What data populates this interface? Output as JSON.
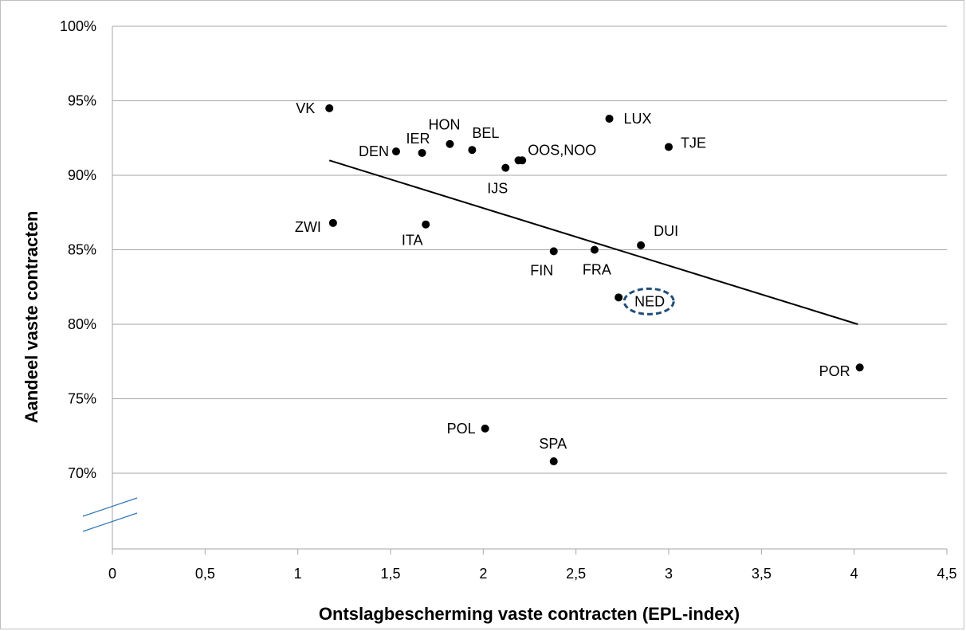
{
  "chart_data": {
    "type": "scatter",
    "title": "",
    "xlabel": "Ontslagbescherming vaste contracten (EPL-index)",
    "ylabel": "Aandeel vaste contracten",
    "xlim": [
      0,
      4.5
    ],
    "ylim": [
      65,
      100
    ],
    "x_ticks": [
      0,
      0.5,
      1,
      1.5,
      2,
      2.5,
      3,
      3.5,
      4,
      4.5
    ],
    "x_tick_labels": [
      "0",
      "0,5",
      "1",
      "1,5",
      "2",
      "2,5",
      "3",
      "3,5",
      "4",
      "4,5"
    ],
    "y_ticks": [
      70,
      75,
      80,
      85,
      90,
      95,
      100
    ],
    "y_tick_labels": [
      "70%",
      "75%",
      "80%",
      "85%",
      "90%",
      "95%",
      "100%"
    ],
    "grid": "horizontal",
    "axis_break": "y-axis break below 70%",
    "points": [
      {
        "label": "VK",
        "x": 1.17,
        "y": 94.5
      },
      {
        "label": "DEN",
        "x": 1.53,
        "y": 91.6
      },
      {
        "label": "IER",
        "x": 1.67,
        "y": 91.5
      },
      {
        "label": "HON",
        "x": 1.82,
        "y": 92.1
      },
      {
        "label": "BEL",
        "x": 1.94,
        "y": 91.7
      },
      {
        "label": "IJS",
        "x": 2.12,
        "y": 90.5
      },
      {
        "label": "",
        "x": 2.19,
        "y": 91.0
      },
      {
        "label": "OOS,NOO",
        "x": 2.21,
        "y": 91.0
      },
      {
        "label": "LUX",
        "x": 2.68,
        "y": 93.8
      },
      {
        "label": "TJE",
        "x": 3.0,
        "y": 91.9
      },
      {
        "label": "ZWI",
        "x": 1.19,
        "y": 86.8
      },
      {
        "label": "ITA",
        "x": 1.69,
        "y": 86.7
      },
      {
        "label": "FIN",
        "x": 2.38,
        "y": 84.9
      },
      {
        "label": "FRA",
        "x": 2.6,
        "y": 85.0
      },
      {
        "label": "DUI",
        "x": 2.85,
        "y": 85.3
      },
      {
        "label": "NED",
        "x": 2.73,
        "y": 81.8
      },
      {
        "label": "POR",
        "x": 4.03,
        "y": 77.1
      },
      {
        "label": "POL",
        "x": 2.01,
        "y": 73.0
      },
      {
        "label": "SPA",
        "x": 2.38,
        "y": 70.8
      }
    ],
    "trendline": {
      "x": [
        1.17,
        4.02
      ],
      "y": [
        91.0,
        80.0
      ]
    },
    "highlight": {
      "label": "NED",
      "style": "dashed ellipse",
      "color": "#1f4e79"
    },
    "colors": {
      "points": "#000000",
      "grid": "#a6a6a6",
      "axis_break": "#2e75b6"
    }
  }
}
